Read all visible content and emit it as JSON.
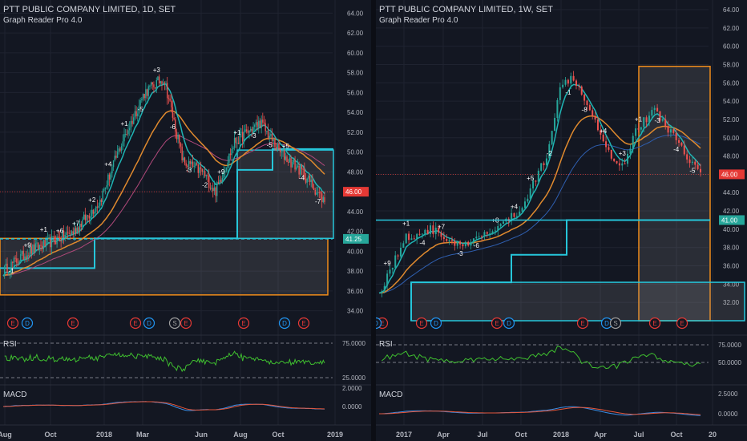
{
  "colors": {
    "background": "#131722",
    "grid": "#1f2330",
    "candle_up": "#26a69a",
    "candle_down": "#ef5350",
    "ma_fast": "#1fb5b5",
    "ma_slow": "#e08a2e",
    "ma_long_left": "#b0497a",
    "ma_long_right": "#2f5fb0",
    "rsi": "#3fbf2f",
    "macd": "#3a8ee6",
    "signal": "#e5563a",
    "box_cyan": "#26c6da",
    "box_orange": "#f08c1a",
    "price_tag": "#e53935",
    "support_tag": "#26a69a"
  },
  "left_chart": {
    "title": "PTT PUBLIC COMPANY LIMITED, 1D, SET",
    "subtitle": "Graph Reader Pro 4.0",
    "price_axis": [
      "64.00",
      "62.00",
      "60.00",
      "58.00",
      "56.00",
      "54.00",
      "52.00",
      "50.00",
      "48.00",
      "46.00",
      "44.00",
      "42.00",
      "40.00",
      "38.00",
      "36.00",
      "34.00"
    ],
    "price_min": 33,
    "price_max": 65,
    "last_price": "46.00",
    "support_price": "41.25",
    "time_axis": [
      "Aug",
      "Oct",
      "2018",
      "Mar",
      "Jun",
      "Aug",
      "Oct",
      "2019"
    ],
    "events": [
      "E",
      "D",
      "E",
      "E",
      "D",
      "S",
      "E",
      "E",
      "D",
      "E"
    ],
    "rsi_label": "RSI",
    "rsi_axis": [
      "75.0000",
      "25.0000"
    ],
    "macd_label": "MACD",
    "macd_axis": [
      "2.0000",
      "0.0000"
    ],
    "counts": [
      "-1",
      "+9",
      "+1",
      "+6",
      "+7",
      "+2",
      "+4",
      "+1",
      "-5",
      "+3",
      "-6",
      "-3",
      "-2",
      "+9",
      "+1",
      "-3",
      "-5",
      "+5",
      "-4",
      "-7"
    ]
  },
  "right_chart": {
    "title": "PTT PUBLIC COMPANY LIMITED, 1W, SET",
    "subtitle": "Graph Reader Pro 4.0",
    "price_axis": [
      "64.00",
      "62.00",
      "60.00",
      "58.00",
      "56.00",
      "54.00",
      "52.00",
      "50.00",
      "48.00",
      "46.00",
      "44.00",
      "42.00",
      "40.00",
      "38.00",
      "36.00",
      "34.00",
      "32.00"
    ],
    "price_min": 30,
    "price_max": 64.7,
    "last_price": "46.00",
    "support_price": "41.00",
    "time_axis": [
      "2017",
      "Apr",
      "Jul",
      "Oct",
      "2018",
      "Apr",
      "Jul",
      "Oct",
      "20"
    ],
    "events": [
      "E",
      "E",
      "D",
      "E",
      "D",
      "E",
      "D",
      "S",
      "E",
      "E",
      "D"
    ],
    "rsi_label": "RSI",
    "rsi_axis": [
      "75.0000",
      "50.0000"
    ],
    "macd_label": "MACD",
    "macd_axis": [
      "2.5000",
      "0.0000"
    ],
    "counts": [
      "+9",
      "+1",
      "-4",
      "+7",
      "-3",
      "-6",
      "+8",
      "+4",
      "+5",
      "-2",
      "-1",
      "-8",
      "+4",
      "+3",
      "+1",
      "-3",
      "-4",
      "-5"
    ]
  }
}
